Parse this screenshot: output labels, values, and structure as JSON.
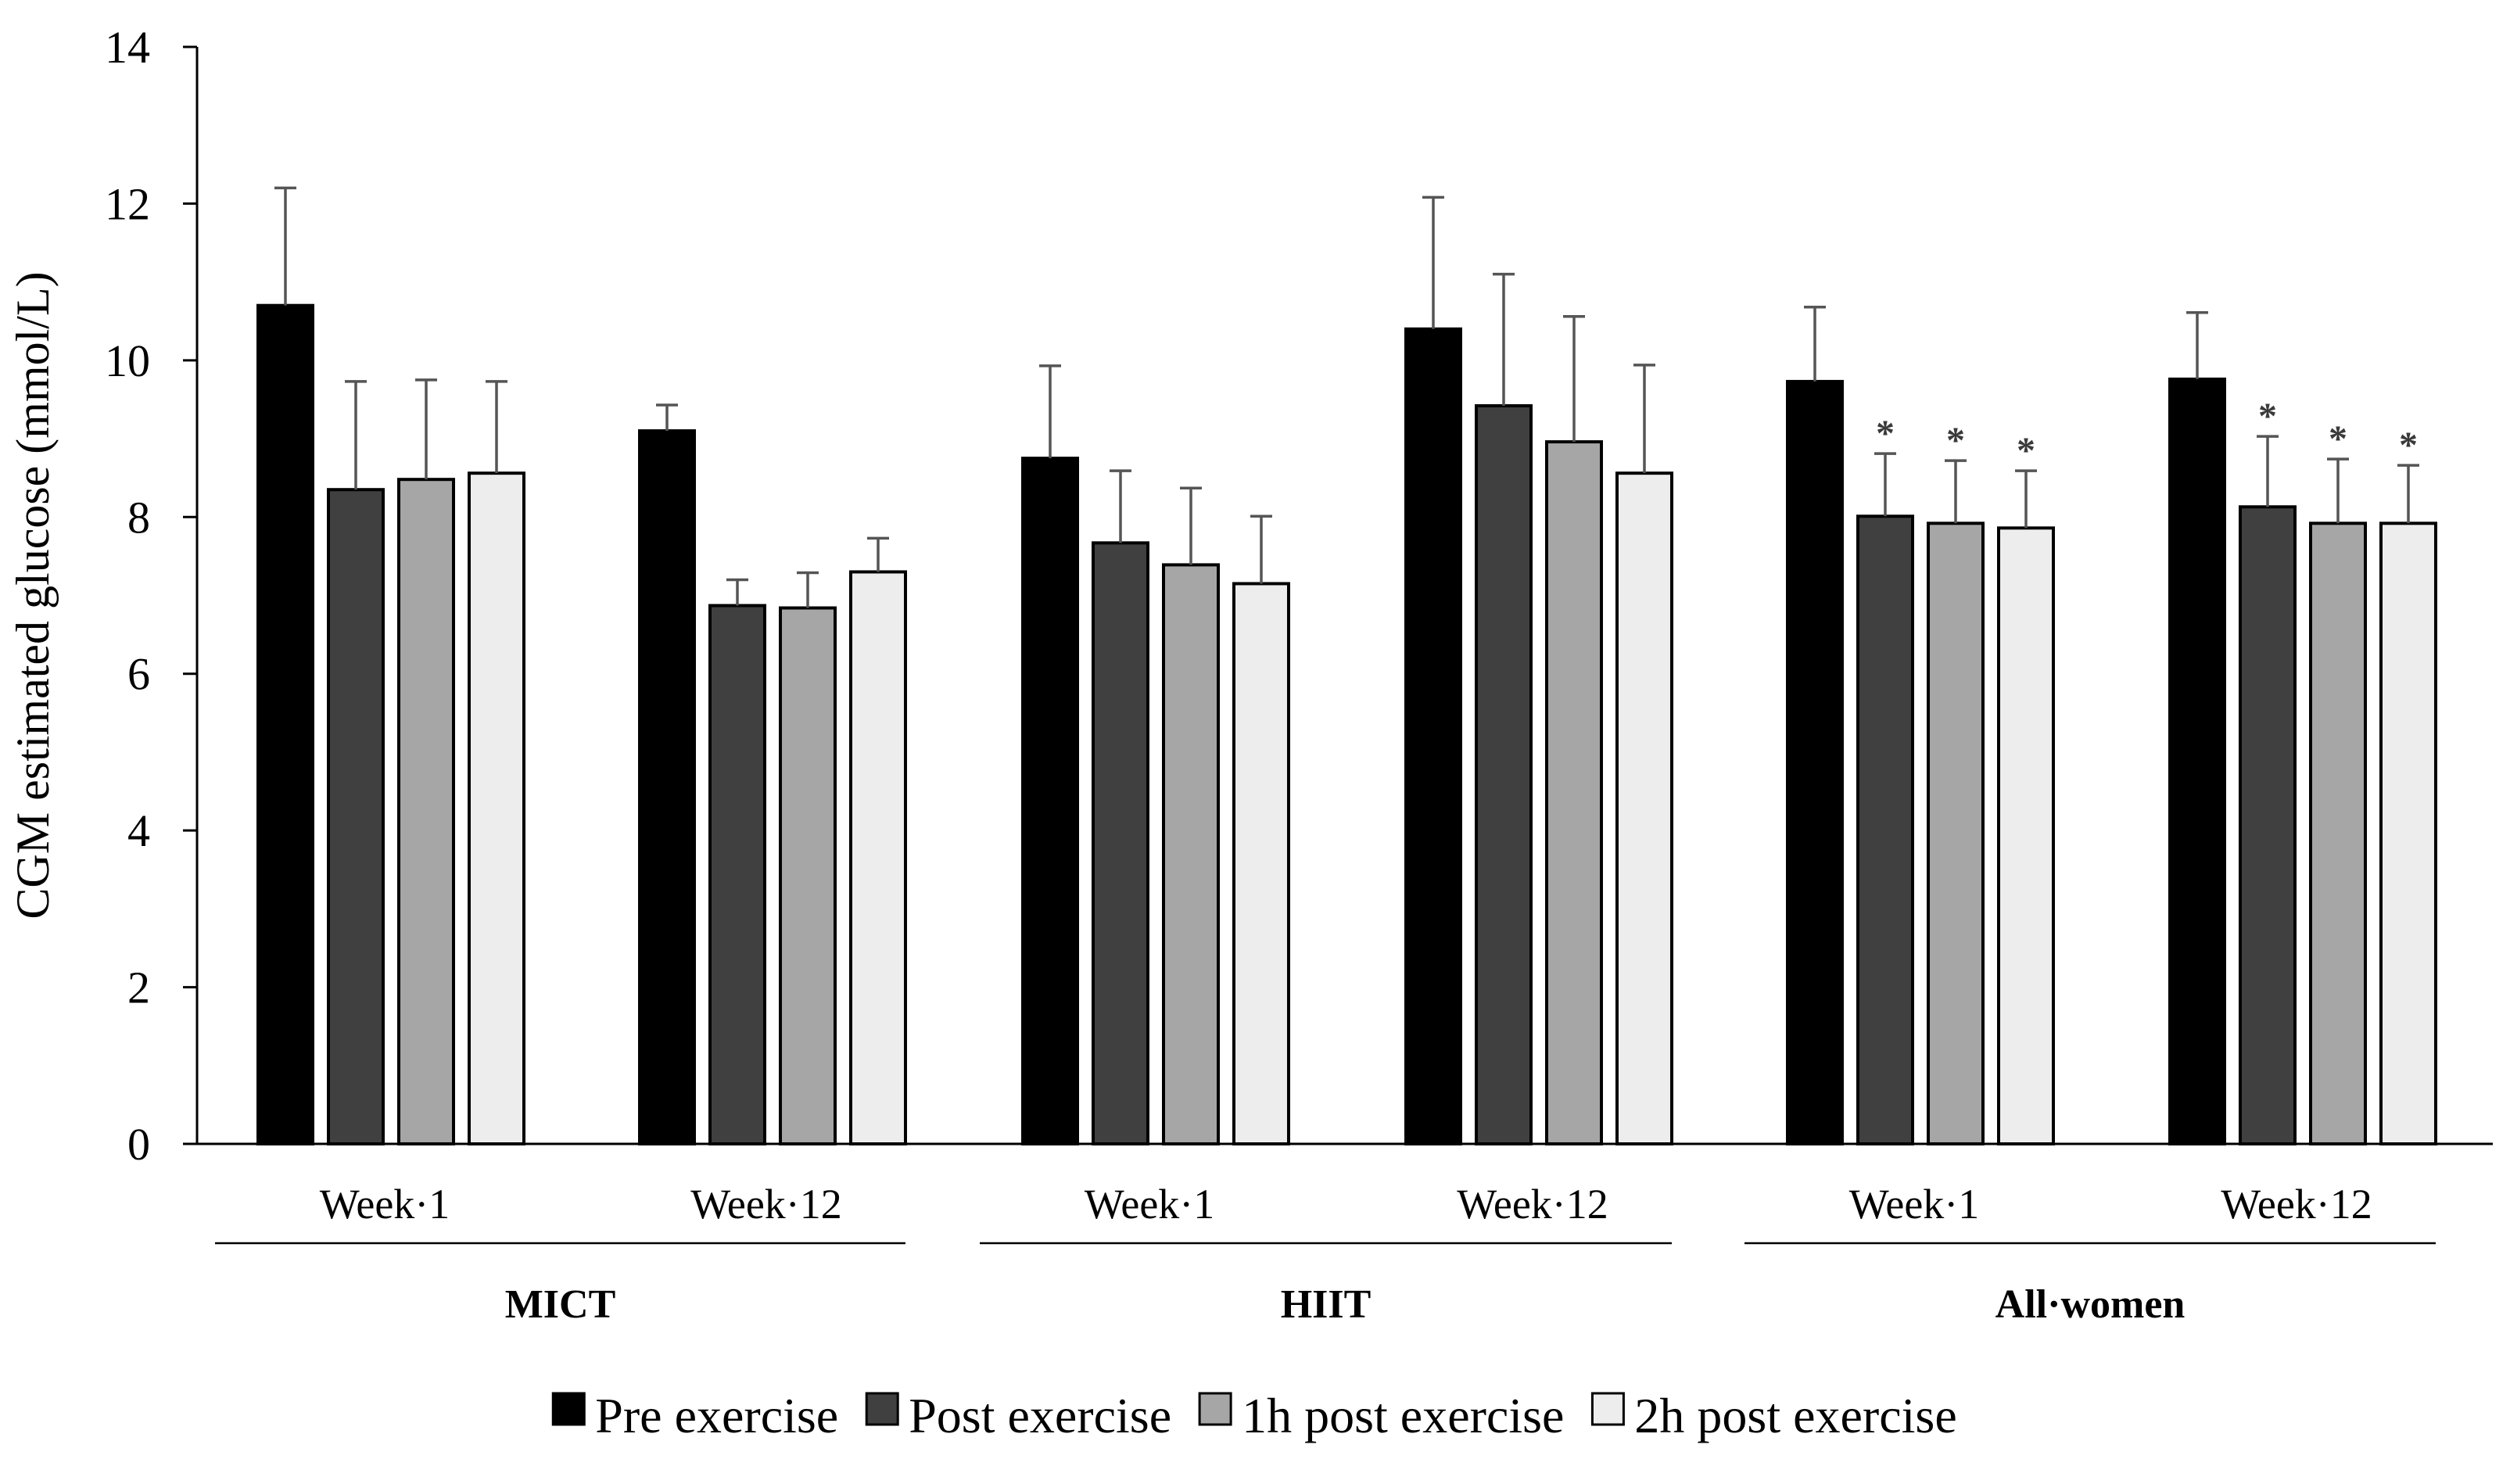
{
  "chart_data": {
    "type": "bar",
    "title": "",
    "xlabel": "",
    "ylabel": "CGM estimated glucose (mmol/L)",
    "ylim": [
      0,
      14
    ],
    "yticks": [
      0,
      2,
      4,
      6,
      8,
      10,
      12,
      14
    ],
    "grid": false,
    "legend_position": "bottom",
    "categories": [
      {
        "group": "MICT",
        "label": "Week·1"
      },
      {
        "group": "MICT",
        "label": "Week·12"
      },
      {
        "group": "HIIT",
        "label": "Week·1"
      },
      {
        "group": "HIIT",
        "label": "Week·12"
      },
      {
        "group": "All·women",
        "label": "Week·1"
      },
      {
        "group": "All·women",
        "label": "Week·12"
      }
    ],
    "groups": [
      {
        "label": "MICT",
        "start": 0,
        "end": 1
      },
      {
        "label": "HIIT",
        "start": 2,
        "end": 3
      },
      {
        "label": "All·women",
        "start": 4,
        "end": 5
      }
    ],
    "series": [
      {
        "name": "Pre exercise",
        "color": "#000000",
        "values": [
          10.7,
          9.1,
          8.75,
          10.4,
          9.73,
          9.76
        ],
        "errors": [
          1.5,
          0.33,
          1.18,
          1.68,
          0.95,
          0.85
        ],
        "significance": [
          "",
          "",
          "",
          "",
          "",
          ""
        ]
      },
      {
        "name": "Post exercise",
        "color": "#404040",
        "values": [
          8.35,
          6.87,
          7.67,
          9.42,
          8.01,
          8.13
        ],
        "errors": [
          1.38,
          0.33,
          0.92,
          1.68,
          0.8,
          0.9
        ],
        "significance": [
          "",
          "",
          "",
          "",
          "*",
          "*"
        ]
      },
      {
        "name": "1h post exercise",
        "color": "#a6a6a6",
        "values": [
          8.48,
          6.84,
          7.39,
          8.96,
          7.92,
          7.92
        ],
        "errors": [
          1.27,
          0.45,
          0.98,
          1.6,
          0.8,
          0.82
        ],
        "significance": [
          "",
          "",
          "",
          "",
          "*",
          "*"
        ]
      },
      {
        "name": "2h post exercise",
        "color": "#ededed",
        "values": [
          8.56,
          7.3,
          7.15,
          8.56,
          7.86,
          7.92
        ],
        "errors": [
          1.17,
          0.43,
          0.86,
          1.38,
          0.73,
          0.74
        ],
        "significance": [
          "",
          "",
          "",
          "",
          "*",
          "*"
        ]
      }
    ]
  }
}
